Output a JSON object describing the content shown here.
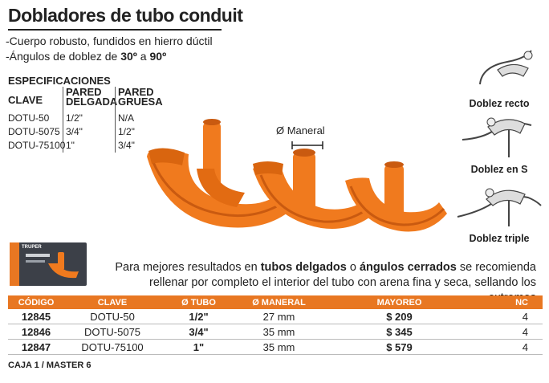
{
  "title": "Dobladores de tubo conduit",
  "features": {
    "f1": "Cuerpo robusto, fundidos en hierro dúctil",
    "f2_pre": "Ángulos de doblez de ",
    "f2_a": "30º",
    "f2_mid": " a ",
    "f2_b": "90º"
  },
  "specs": {
    "title": "ESPECIFICACIONES",
    "col_clave": "CLAVE",
    "col_delgada_1": "PARED",
    "col_delgada_2": "DELGADA",
    "col_gruesa_1": "PARED",
    "col_gruesa_2": "GRUESA",
    "rows": [
      {
        "clave": "DOTU-50",
        "delgada": "1/2\"",
        "gruesa": "N/A"
      },
      {
        "clave": "DOTU-5075",
        "delgada": "3/4\"",
        "gruesa": "1/2\""
      },
      {
        "clave": "DOTU-75100",
        "delgada": "1\"",
        "gruesa": "3/4\""
      }
    ]
  },
  "maneral_label": "Ø Maneral",
  "box_brand": "TRUPER",
  "bends": {
    "recto": "Doblez recto",
    "s": "Doblez en S",
    "triple": "Doblez triple"
  },
  "note": {
    "p1": "Para mejores resultados en ",
    "b1": "tubos delgados",
    "p2": " o ",
    "b2": "ángulos cerrados",
    "p3": " se recomienda rellenar por completo el interior del tubo con arena fina y seca, sellando los extremos"
  },
  "table": {
    "headers": [
      "CÓDIGO",
      "CLAVE",
      "Ø TUBO",
      "Ø MANERAL",
      "MAYOREO",
      "NC"
    ],
    "rows": [
      {
        "codigo": "12845",
        "clave": "DOTU-50",
        "tubo": "1/2\"",
        "maneral": "27 mm",
        "mayoreo": "$ 209",
        "nc": "4"
      },
      {
        "codigo": "12846",
        "clave": "DOTU-5075",
        "tubo": "3/4\"",
        "maneral": "35 mm",
        "mayoreo": "$ 345",
        "nc": "4"
      },
      {
        "codigo": "12847",
        "clave": "DOTU-75100",
        "tubo": "1\"",
        "maneral": "35 mm",
        "mayoreo": "$ 579",
        "nc": "4"
      }
    ]
  },
  "footer": "CAJA 1 / MASTER 6",
  "colors": {
    "accent": "#e87722",
    "product": "#f07a1e",
    "product_dark": "#c95a10"
  }
}
